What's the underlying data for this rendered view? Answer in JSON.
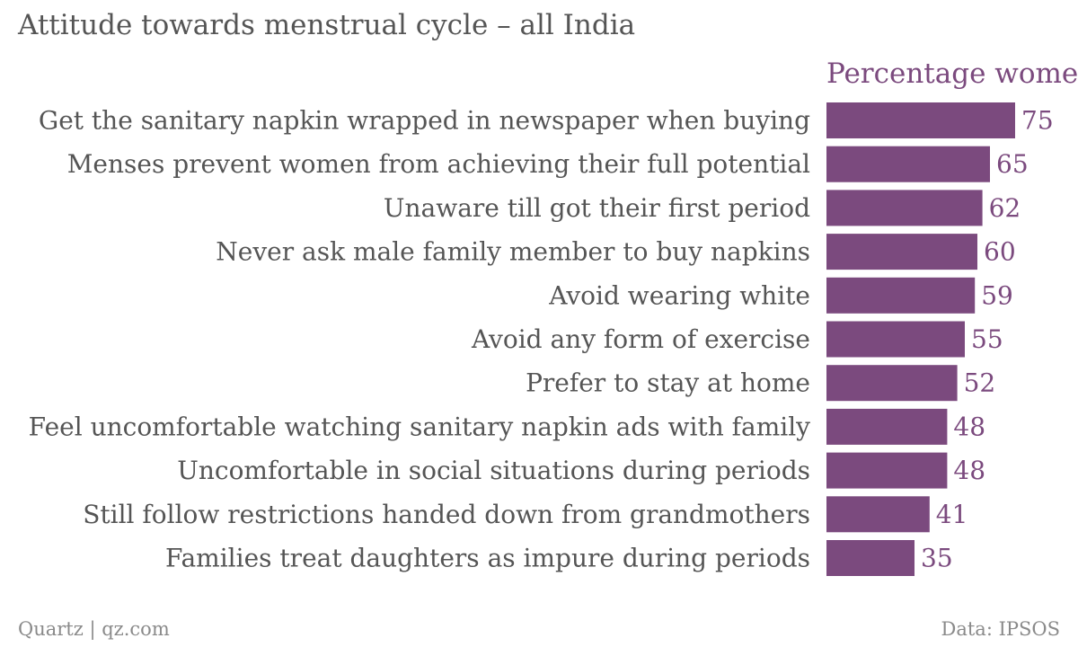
{
  "colors": {
    "bar": "#7b4a7e",
    "value_label": "#7b4a7e",
    "category_label": "#555555",
    "title": "#555555",
    "footer": "#8a8a8a"
  },
  "chart_data": {
    "type": "bar",
    "orientation": "horizontal",
    "title": "Attitude towards menstrual cycle – all India",
    "categories": [
      "Get the sanitary napkin wrapped in newspaper when buying",
      "Menses prevent women from achieving their full potential",
      "Unaware till got their first period",
      "Never ask male family member to buy napkins",
      "Avoid wearing white",
      "Avoid any form of exercise",
      "Prefer to stay at home",
      "Feel uncomfortable watching sanitary napkin ads with family",
      "Uncomfortable in social situations during periods",
      "Still follow restrictions handed down from grandmothers",
      "Families treat daughters as impure during periods"
    ],
    "series": [
      {
        "name": "Percentage women",
        "values": [
          75,
          65,
          62,
          60,
          59,
          55,
          52,
          48,
          48,
          41,
          35
        ]
      }
    ],
    "xlim": [
      0,
      75
    ],
    "grid": false,
    "data_labels": true
  },
  "footer": {
    "source_left": "Quartz | qz.com",
    "source_right": "Data: IPSOS"
  }
}
